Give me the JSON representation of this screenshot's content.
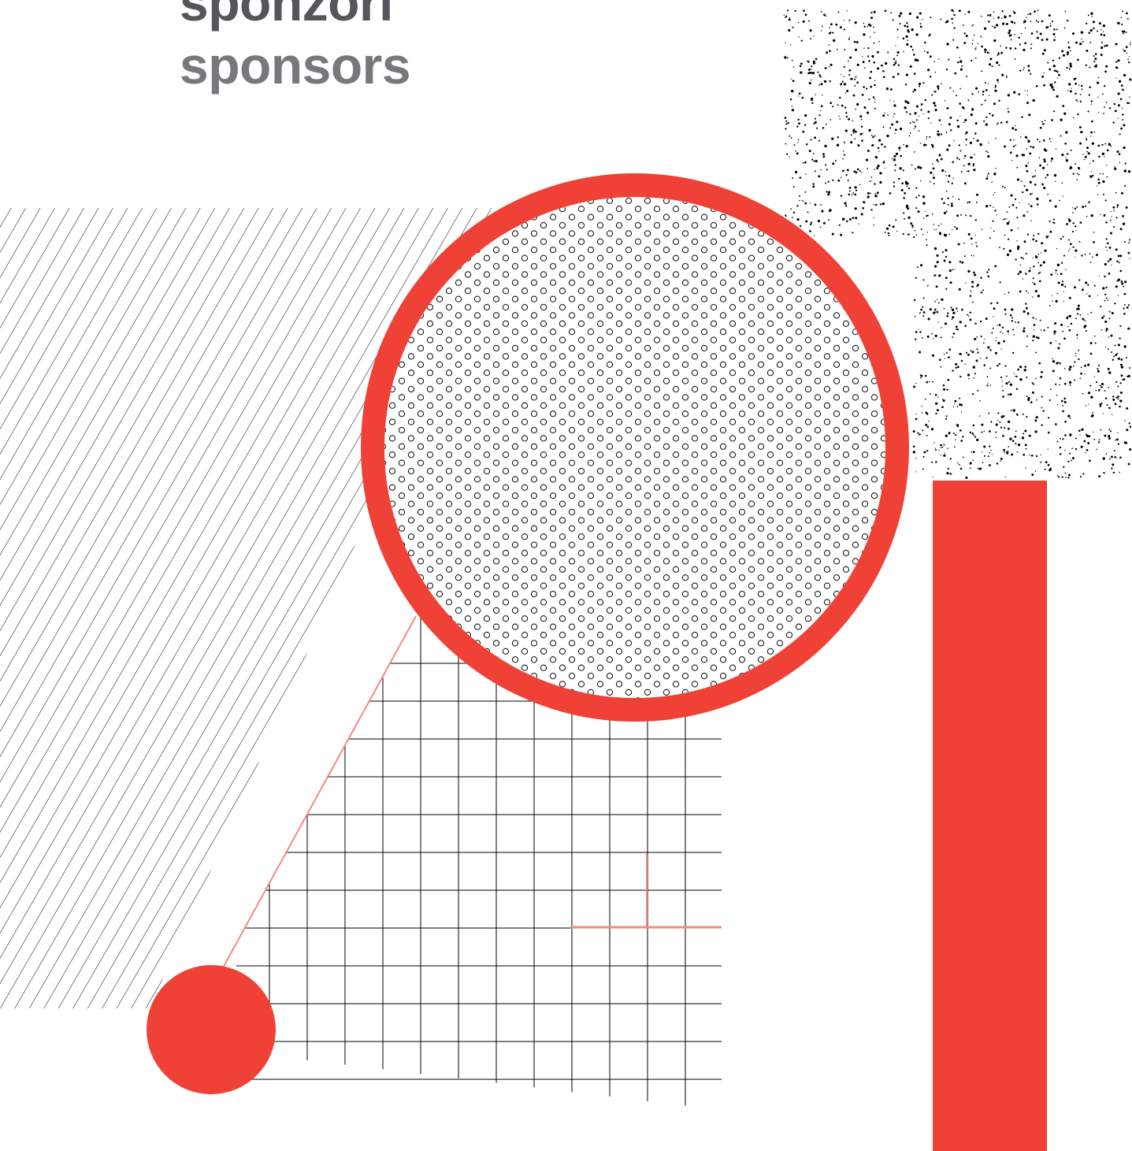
{
  "heading": {
    "line1": "sponzori",
    "line2": "sponsors"
  },
  "colors": {
    "accent": "#ef4136",
    "accent_light": "#f28b82",
    "heading_dark": "#55565a",
    "heading": "#77787c",
    "ink": "#000000"
  }
}
